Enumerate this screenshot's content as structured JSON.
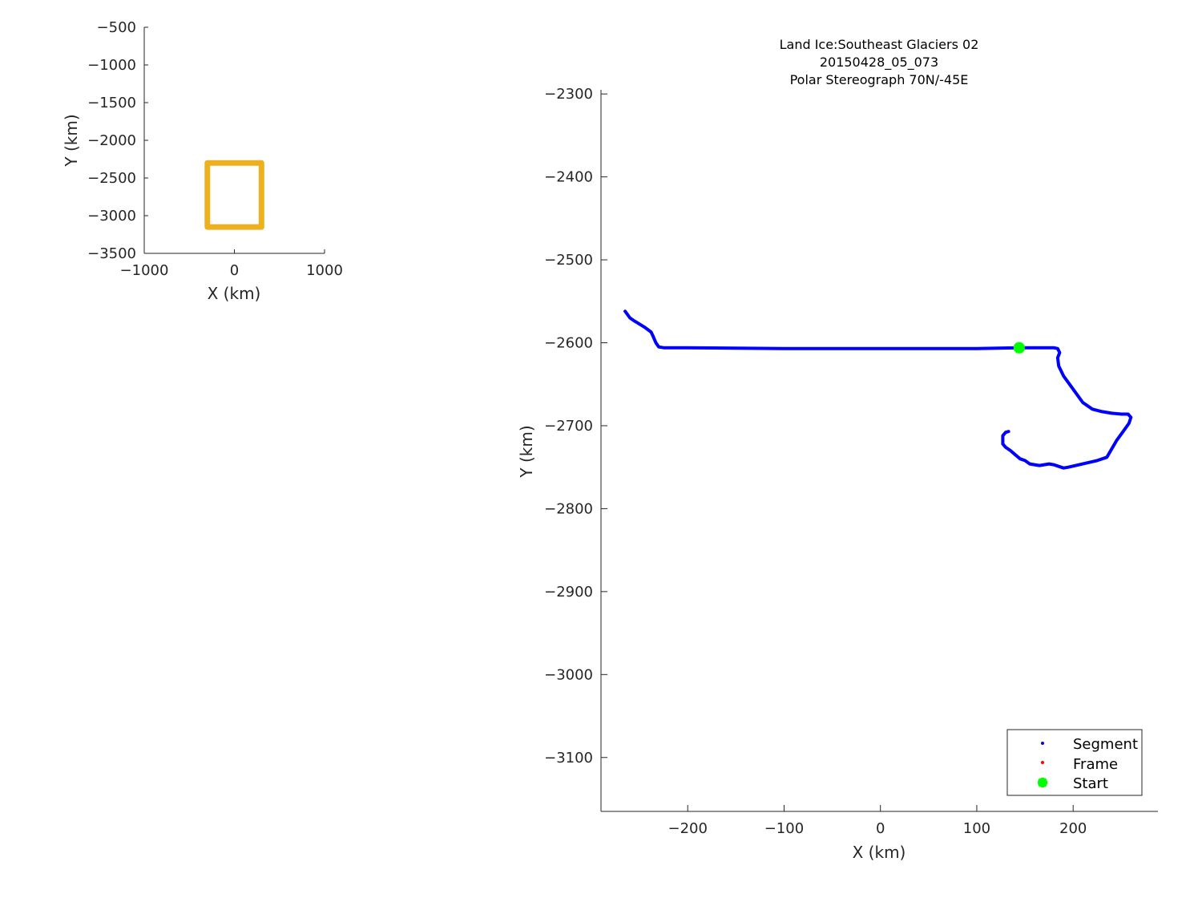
{
  "chart_data": [
    {
      "type": "line",
      "xlabel": "X (km)",
      "ylabel": "Y (km)",
      "xlim": [
        -1000,
        1000
      ],
      "ylim": [
        -3500,
        -500
      ],
      "xticks": [
        "−1000",
        "0",
        "1000"
      ],
      "yticks": [
        "−500",
        "−1000",
        "−1500",
        "−2000",
        "−2500",
        "−3000",
        "−3500"
      ],
      "series": [
        {
          "color": "#EDB120",
          "x": [
            -300,
            300,
            300,
            -300,
            -300
          ],
          "y": [
            -2300,
            -2300,
            -3150,
            -3150,
            -2300
          ]
        }
      ]
    },
    {
      "type": "line",
      "title": [
        "Land Ice:Southeast  Glaciers 02",
        "20150428_05_073",
        "Polar Stereograph 70N/-45E"
      ],
      "xlabel": "X (km)",
      "ylabel": "Y (km)",
      "xlim": [
        -290,
        288
      ],
      "ylim": [
        -3165,
        -2295
      ],
      "xticks": [
        "−200",
        "−100",
        "0",
        "100",
        "200"
      ],
      "yticks": [
        "−2300",
        "−2400",
        "−2500",
        "−2600",
        "−2700",
        "−2800",
        "−2900",
        "−3000",
        "−3100"
      ],
      "legend": {
        "placement": "bottom-right",
        "entries": [
          "Segment",
          "Frame",
          "Start"
        ]
      },
      "series": [
        {
          "name": "Segment",
          "color": "#0000FF",
          "x": [
            -265,
            -260,
            -255,
            -245,
            -238,
            -236,
            -233,
            -230,
            -225,
            -200,
            -100,
            0,
            100,
            145,
            180,
            184,
            186,
            184,
            185,
            190,
            200,
            210,
            220,
            230,
            240,
            250,
            257,
            260,
            258,
            255,
            250,
            245,
            235,
            225,
            210,
            195,
            190,
            185,
            180,
            175,
            170,
            165,
            155,
            150,
            145,
            140,
            135,
            130,
            127,
            127,
            130,
            133
          ],
          "y": [
            -2562,
            -2570,
            -2574,
            -2581,
            -2587,
            -2592,
            -2600,
            -2605,
            -2606,
            -2606,
            -2607,
            -2607,
            -2607,
            -2606,
            -2606,
            -2607,
            -2612,
            -2618,
            -2628,
            -2640,
            -2656,
            -2672,
            -2680,
            -2683,
            -2685,
            -2686,
            -2686,
            -2690,
            -2697,
            -2702,
            -2710,
            -2718,
            -2738,
            -2742,
            -2746,
            -2750,
            -2751,
            -2749,
            -2747,
            -2746,
            -2747,
            -2748,
            -2746,
            -2742,
            -2740,
            -2735,
            -2730,
            -2726,
            -2722,
            -2712,
            -2708,
            -2707
          ]
        },
        {
          "name": "Frame",
          "color": "#FF0000",
          "x": [],
          "y": []
        },
        {
          "name": "Start",
          "color": "#00FF00",
          "x": [
            144
          ],
          "y": [
            -2606
          ]
        }
      ]
    }
  ]
}
